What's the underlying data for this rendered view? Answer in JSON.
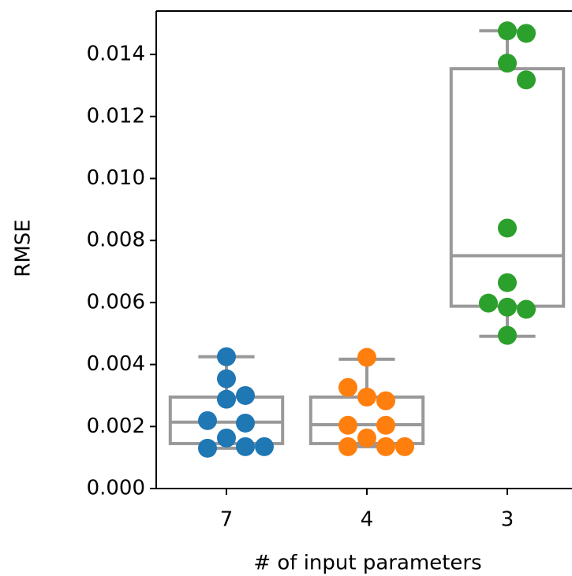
{
  "chart_data": {
    "type": "box",
    "x_label": "# of input parameters",
    "y_label": "RMSE",
    "categories": [
      "7",
      "4",
      "3"
    ],
    "colors": [
      "#1f77b4",
      "#ff7f0e",
      "#2ca02c"
    ],
    "box_color": "#999999",
    "boxes": [
      {
        "whislo": 0.0013,
        "q1": 0.00145,
        "median": 0.00214,
        "q3": 0.00295,
        "whishi": 0.00425
      },
      {
        "whislo": 0.00135,
        "q1": 0.00145,
        "median": 0.00206,
        "q3": 0.00295,
        "whishi": 0.00417
      },
      {
        "whislo": 0.00491,
        "q1": 0.00588,
        "median": 0.00751,
        "q3": 0.01354,
        "whishi": 0.01476
      }
    ],
    "points": [
      [
        0.00163,
        0.00135,
        0.0013,
        0.00135,
        0.00425,
        0.00354,
        0.003,
        0.00288,
        0.00211,
        0.00219
      ],
      [
        0.00423,
        0.00295,
        0.00283,
        0.00326,
        0.00163,
        0.00135,
        0.00135,
        0.00135,
        0.00204,
        0.00204
      ],
      [
        0.01476,
        0.01468,
        0.01372,
        0.01318,
        0.0084,
        0.00664,
        0.00585,
        0.00578,
        0.00598,
        0.00494
      ]
    ],
    "ylim": [
      0,
      0.0154
    ],
    "yticks": [
      {
        "value": 0,
        "label": "0.000"
      },
      {
        "value": 0.002,
        "label": "0.002"
      },
      {
        "value": 0.004,
        "label": "0.004"
      },
      {
        "value": 0.006,
        "label": "0.006"
      },
      {
        "value": 0.008,
        "label": "0.008"
      },
      {
        "value": 0.01,
        "label": "0.010"
      },
      {
        "value": 0.012,
        "label": "0.012"
      },
      {
        "value": 0.014,
        "label": "0.014"
      }
    ]
  }
}
